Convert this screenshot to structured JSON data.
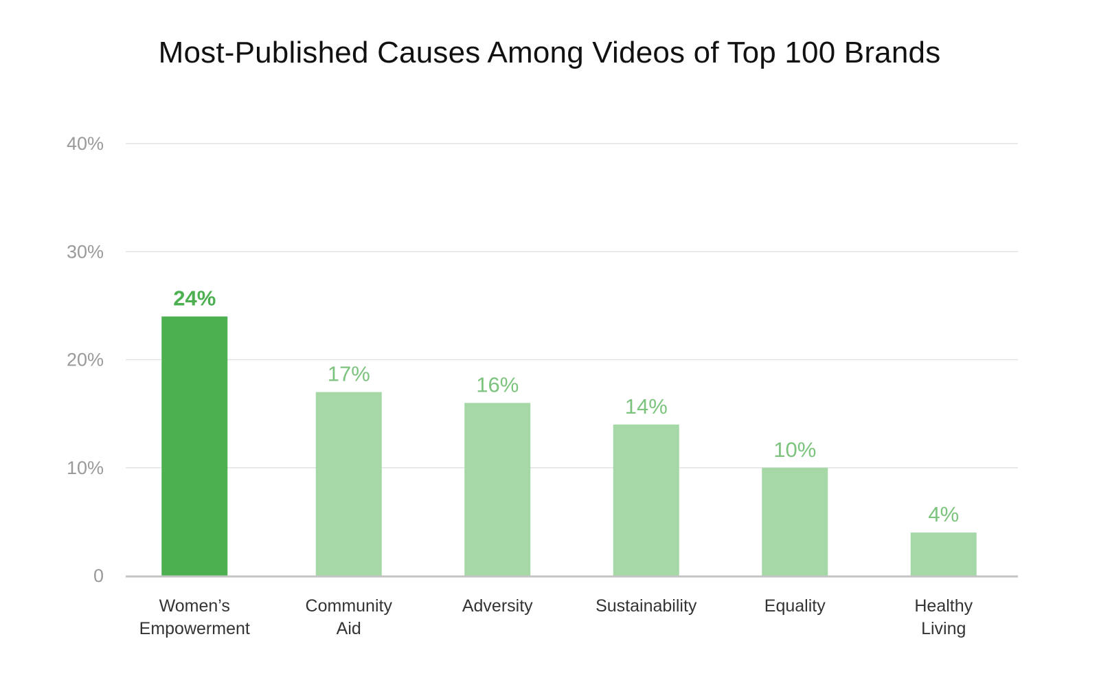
{
  "title": "Most-Published Causes Among Videos of Top 100 Brands",
  "colors": {
    "highlight_bar": "#4caf50",
    "bar": "#a6d8a7",
    "highlight_label": "#4caf50",
    "label": "#7cc37e",
    "grid": "#e3e3e3",
    "axis": "#c4c4c4",
    "tick_text": "#9a9a9a",
    "category_text": "#333333",
    "title_text": "#111111"
  },
  "chart_data": {
    "type": "bar",
    "title": "Most-Published Causes Among Videos of Top 100 Brands",
    "categories": [
      [
        "Women’s",
        "Empowerment"
      ],
      [
        "Community",
        "Aid"
      ],
      [
        "Adversity"
      ],
      [
        "Sustainability"
      ],
      [
        "Equality"
      ],
      [
        "Healthy",
        "Living"
      ]
    ],
    "values": [
      24,
      17,
      16,
      14,
      10,
      4
    ],
    "value_labels": [
      "24%",
      "17%",
      "16%",
      "14%",
      "10%",
      "4%"
    ],
    "highlight_index": 0,
    "ylim": [
      0,
      40
    ],
    "yticks": [
      0,
      10,
      20,
      30,
      40
    ],
    "ytick_labels": [
      "0",
      "10%",
      "20%",
      "30%",
      "40%"
    ],
    "xlabel": "",
    "ylabel": "",
    "grid": true,
    "legend": "none"
  }
}
